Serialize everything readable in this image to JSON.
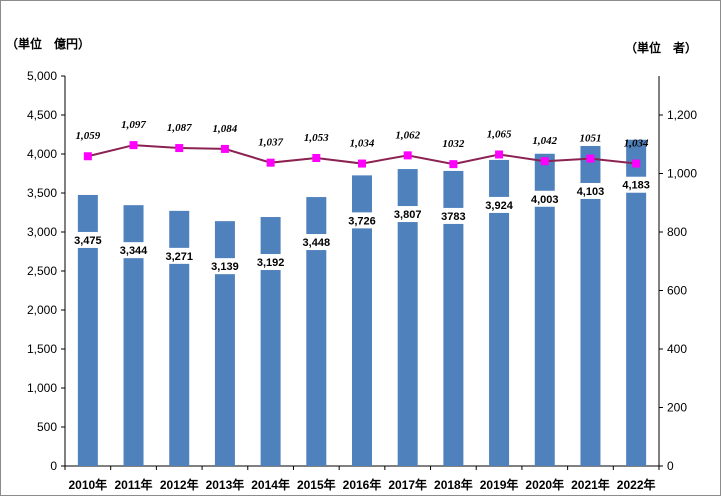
{
  "chart_data": {
    "type": "bar",
    "categories": [
      "2010年",
      "2011年",
      "2012年",
      "2013年",
      "2014年",
      "2015年",
      "2016年",
      "2017年",
      "2018年",
      "2019年",
      "2020年",
      "2021年",
      "2022年"
    ],
    "series": [
      {
        "type": "bar",
        "axis": "left",
        "values": [
          3475,
          3344,
          3271,
          3139,
          3192,
          3448,
          3726,
          3807,
          3783,
          3924,
          4003,
          4103,
          4183
        ],
        "labels": [
          "3,475",
          "3,344",
          "3,271",
          "3,139",
          "3,192",
          "3,448",
          "3,726",
          "3,807",
          "3783",
          "3,924",
          "4,003",
          "4,103",
          "4,183"
        ],
        "color": "#4f81bd"
      },
      {
        "type": "line",
        "axis": "right",
        "values": [
          1059,
          1097,
          1087,
          1084,
          1037,
          1053,
          1034,
          1062,
          1032,
          1065,
          1042,
          1051,
          1034
        ],
        "labels": [
          "1,059",
          "1,097",
          "1,087",
          "1,084",
          "1,037",
          "1,053",
          "1,034",
          "1,062",
          "1032",
          "1,065",
          "1,042",
          "1051",
          "1,034"
        ],
        "color": "#8b2252",
        "marker_color": "#ff00ff"
      }
    ],
    "left_axis": {
      "unit_label": "（単位　億円）",
      "ylim": [
        0,
        5000
      ],
      "ticks": [
        "0",
        "500",
        "1,000",
        "1,500",
        "2,000",
        "2,500",
        "3,000",
        "3,500",
        "4,000",
        "4,500",
        "5,000"
      ]
    },
    "right_axis": {
      "unit_label": "（単位　者）",
      "ylim": [
        0,
        1333.33
      ],
      "ticks": [
        "0",
        "200",
        "400",
        "600",
        "800",
        "1,000",
        "1,200"
      ]
    },
    "grid": false,
    "legend": "none"
  }
}
